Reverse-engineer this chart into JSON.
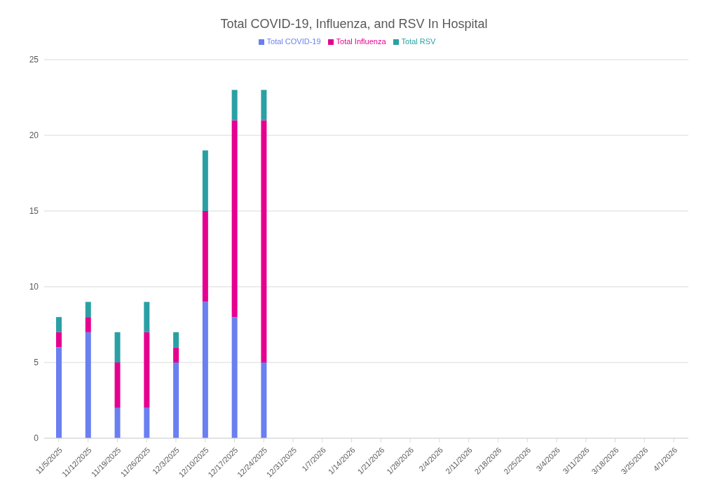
{
  "chart_data": {
    "type": "bar",
    "title": "Total COVID-19, Influenza, and RSV In Hospital",
    "stacked": true,
    "categories": [
      "11/5/2025",
      "11/12/2025",
      "11/19/2025",
      "11/26/2025",
      "12/3/2025",
      "12/10/2025",
      "12/17/2025",
      "12/24/2025",
      "12/31/2025",
      "1/7/2026",
      "1/14/2026",
      "1/21/2026",
      "1/28/2026",
      "2/4/2026",
      "2/11/2026",
      "2/18/2026",
      "2/25/2026",
      "3/4/2026",
      "3/11/2026",
      "3/18/2026",
      "3/25/2026",
      "4/1/2026"
    ],
    "series": [
      {
        "name": "Total COVID-19",
        "color": "#6a7ff0",
        "values": [
          6,
          7,
          2,
          2,
          5,
          9,
          8,
          5,
          null,
          null,
          null,
          null,
          null,
          null,
          null,
          null,
          null,
          null,
          null,
          null,
          null,
          null
        ]
      },
      {
        "name": "Total Influenza",
        "color": "#e6008f",
        "values": [
          1,
          1,
          3,
          5,
          1,
          6,
          13,
          16,
          null,
          null,
          null,
          null,
          null,
          null,
          null,
          null,
          null,
          null,
          null,
          null,
          null,
          null
        ]
      },
      {
        "name": "Total RSV",
        "color": "#2aa0a4",
        "values": [
          1,
          1,
          2,
          2,
          1,
          4,
          2,
          2,
          null,
          null,
          null,
          null,
          null,
          null,
          null,
          null,
          null,
          null,
          null,
          null,
          null,
          null
        ]
      }
    ],
    "ylim": [
      0,
      25
    ],
    "yticks": [
      0,
      5,
      10,
      15,
      20,
      25
    ],
    "grid": "y",
    "legend": "top"
  }
}
